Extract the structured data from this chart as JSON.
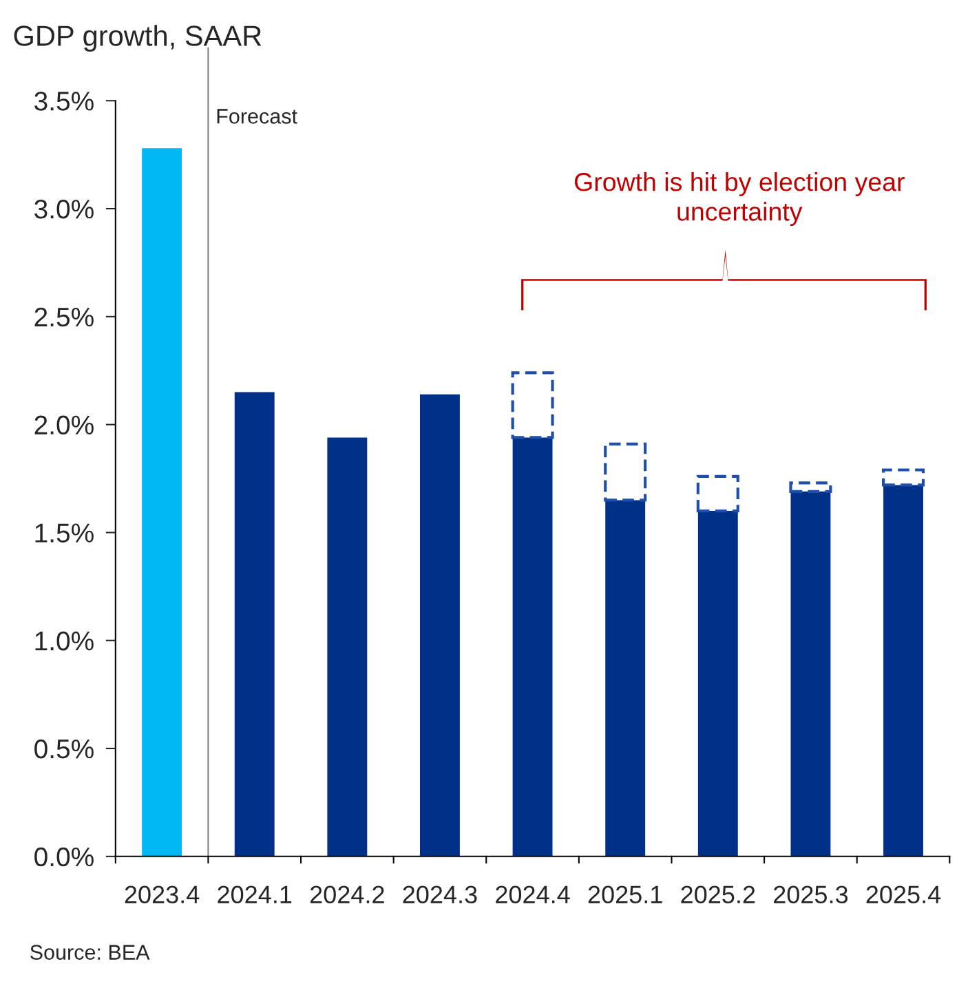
{
  "chart_data": {
    "type": "bar",
    "title": "GDP growth, SAAR",
    "categories": [
      "2023.4",
      "2024.1",
      "2024.2",
      "2024.3",
      "2024.4",
      "2025.1",
      "2025.2",
      "2025.3",
      "2025.4"
    ],
    "series": [
      {
        "colors": [
          "#00b8f1",
          "#003087",
          "#003087",
          "#003087",
          "#003087",
          "#003087",
          "#003087",
          "#003087",
          "#003087"
        ],
        "values": [
          3.28,
          2.15,
          1.94,
          2.14,
          1.94,
          1.65,
          1.6,
          1.69,
          1.72
        ]
      },
      {
        "color": "#1f4fa8",
        "line_style": "dashed",
        "values": [
          null,
          null,
          null,
          null,
          0.3,
          0.26,
          0.16,
          0.04,
          0.07
        ]
      }
    ],
    "stacked": true,
    "ylim": [
      0,
      3.5
    ],
    "yticks": [
      {
        "value": 0,
        "label": "0.0%"
      },
      {
        "value": 0.5,
        "label": "0.5%"
      },
      {
        "value": 1,
        "label": "1.0%"
      },
      {
        "value": 1.5,
        "label": "1.5%"
      },
      {
        "value": 2,
        "label": "2.0%"
      },
      {
        "value": 2.5,
        "label": "2.5%"
      },
      {
        "value": 3,
        "label": "3.0%"
      },
      {
        "value": 3.5,
        "label": "3.5%"
      }
    ],
    "annotations": [
      "Forecast",
      "Growth is hit by election year\nuncertainty",
      "Source: BEA"
    ],
    "grid": false
  }
}
